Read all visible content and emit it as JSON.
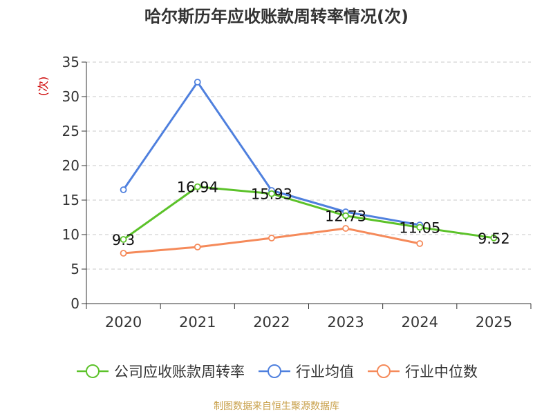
{
  "title": "哈尔斯历年应收账款周转率情况(次)",
  "source": "制图数据来自恒生聚源数据库",
  "chart_data": {
    "type": "line",
    "title": "哈尔斯历年应收账款周转率情况(次)",
    "ylabel": "(次)",
    "xlabel": "",
    "categories": [
      "2020",
      "2021",
      "2022",
      "2023",
      "2024",
      "2025"
    ],
    "ylim": [
      0,
      35
    ],
    "yticks": [
      0,
      5,
      10,
      15,
      20,
      25,
      30,
      35
    ],
    "grid": true,
    "legend_position": "bottom",
    "series": [
      {
        "name": "公司应收账款周转率",
        "color": "#5cc22a",
        "values": [
          9.3,
          16.94,
          15.93,
          12.73,
          11.05,
          9.52
        ],
        "labels": [
          "9.3",
          "16.94",
          "15.93",
          "12.73",
          "11.05",
          "9.52"
        ],
        "show_labels": true
      },
      {
        "name": "行业均值",
        "color": "#4f80de",
        "values": [
          16.5,
          32.1,
          16.4,
          13.3,
          11.4,
          null
        ],
        "show_labels": false
      },
      {
        "name": "行业中位数",
        "color": "#f58a5a",
        "values": [
          7.3,
          8.2,
          9.5,
          10.9,
          8.7,
          null
        ],
        "show_labels": false
      }
    ]
  }
}
